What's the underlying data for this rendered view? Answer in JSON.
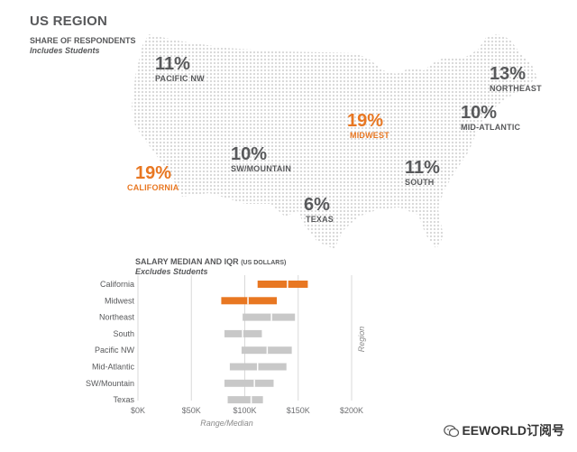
{
  "header": {
    "title": "US REGION",
    "subtitle": "SHARE OF RESPONDENTS",
    "note": "Includes Students"
  },
  "map": {
    "dot_color": "#d7d7d7",
    "highlight_color": "#e87722",
    "regions": [
      {
        "id": "pacific-nw",
        "name": "PACIFIC NW",
        "pct": "11%",
        "highlight": false
      },
      {
        "id": "northeast",
        "name": "NORTHEAST",
        "pct": "13%",
        "highlight": false
      },
      {
        "id": "midwest",
        "name": "MIDWEST",
        "pct": "19%",
        "highlight": true
      },
      {
        "id": "mid-atlantic",
        "name": "MID-ATLANTIC",
        "pct": "10%",
        "highlight": false
      },
      {
        "id": "sw-mountain",
        "name": "SW/MOUNTAIN",
        "pct": "10%",
        "highlight": false
      },
      {
        "id": "california",
        "name": "CALIFORNIA",
        "pct": "19%",
        "highlight": true
      },
      {
        "id": "south",
        "name": "SOUTH",
        "pct": "11%",
        "highlight": false
      },
      {
        "id": "texas",
        "name": "TEXAS",
        "pct": "6%",
        "highlight": false
      }
    ]
  },
  "chart_data": {
    "type": "bar",
    "title": "SALARY MEDIAN AND IQR",
    "title_unit": "(US DOLLARS)",
    "subtitle": "Excludes Students",
    "xlabel": "Range/Median",
    "ylabel": "Region",
    "xlim": [
      0,
      200000
    ],
    "x_ticks": [
      {
        "value": 0,
        "label": "$0K"
      },
      {
        "value": 50000,
        "label": "$50K"
      },
      {
        "value": 100000,
        "label": "$100K"
      },
      {
        "value": 150000,
        "label": "$150K"
      },
      {
        "value": 200000,
        "label": "$200K"
      }
    ],
    "grid": true,
    "colors": {
      "highlight": "#e87722",
      "default": "#c8c8c8"
    },
    "categories": [
      "California",
      "Midwest",
      "Northeast",
      "South",
      "Pacific NW",
      "Mid-Atlantic",
      "SW/Mountain",
      "Texas"
    ],
    "series": [
      {
        "q1": 112000,
        "median": 140000,
        "q3": 159000,
        "highlight": true
      },
      {
        "q1": 78000,
        "median": 103000,
        "q3": 130000,
        "highlight": true
      },
      {
        "q1": 98000,
        "median": 125000,
        "q3": 147000,
        "highlight": false
      },
      {
        "q1": 81000,
        "median": 98000,
        "q3": 116000,
        "highlight": false
      },
      {
        "q1": 97000,
        "median": 121000,
        "q3": 144000,
        "highlight": false
      },
      {
        "q1": 86000,
        "median": 112000,
        "q3": 139000,
        "highlight": false
      },
      {
        "q1": 81000,
        "median": 109000,
        "q3": 127000,
        "highlight": false
      },
      {
        "q1": 84000,
        "median": 106000,
        "q3": 117000,
        "highlight": false
      }
    ]
  },
  "watermark": {
    "text": "EEWORLD订阅号",
    "icon": "wechat-icon"
  }
}
